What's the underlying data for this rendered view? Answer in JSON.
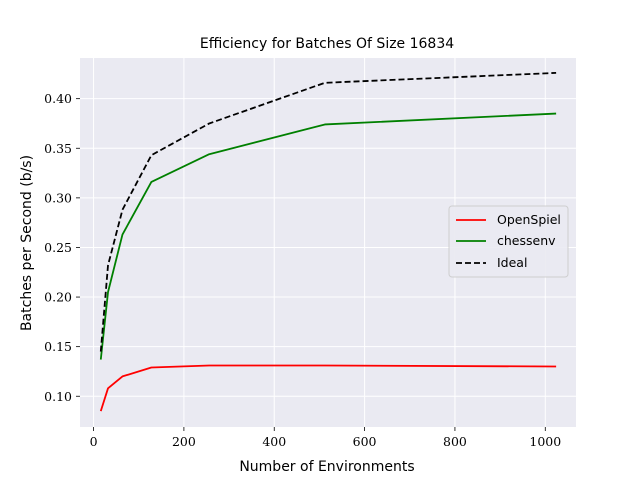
{
  "chart_data": {
    "type": "line",
    "title": "Efficiency for Batches Of Size 16834",
    "xlabel": "Number of Environments",
    "ylabel": "Batches per Second (b/s)",
    "xlim": [
      -30,
      1068
    ],
    "ylim": [
      0.069,
      0.441
    ],
    "xticks": [
      0,
      200,
      400,
      600,
      800,
      1000
    ],
    "yticks": [
      0.1,
      0.15,
      0.2,
      0.25,
      0.3,
      0.35,
      0.4
    ],
    "xtick_labels": [
      "0",
      "200",
      "400",
      "600",
      "800",
      "1000"
    ],
    "ytick_labels": [
      "0.10",
      "0.15",
      "0.20",
      "0.25",
      "0.30",
      "0.35",
      "0.40"
    ],
    "grid": true,
    "background": "#eaeaf2",
    "legend_position": "center-right",
    "x": [
      16,
      32,
      64,
      128,
      256,
      512,
      1024
    ],
    "series": [
      {
        "name": "OpenSpiel",
        "color": "#ff0000",
        "dash": "solid",
        "values": [
          0.085,
          0.108,
          0.12,
          0.129,
          0.131,
          0.131,
          0.13
        ]
      },
      {
        "name": "chessenv",
        "color": "#008000",
        "dash": "solid",
        "values": [
          0.137,
          0.205,
          0.263,
          0.316,
          0.344,
          0.374,
          0.385
        ]
      },
      {
        "name": "Ideal",
        "color": "#000000",
        "dash": "dashed",
        "values": [
          0.145,
          0.232,
          0.288,
          0.343,
          0.375,
          0.416,
          0.426
        ]
      }
    ]
  }
}
